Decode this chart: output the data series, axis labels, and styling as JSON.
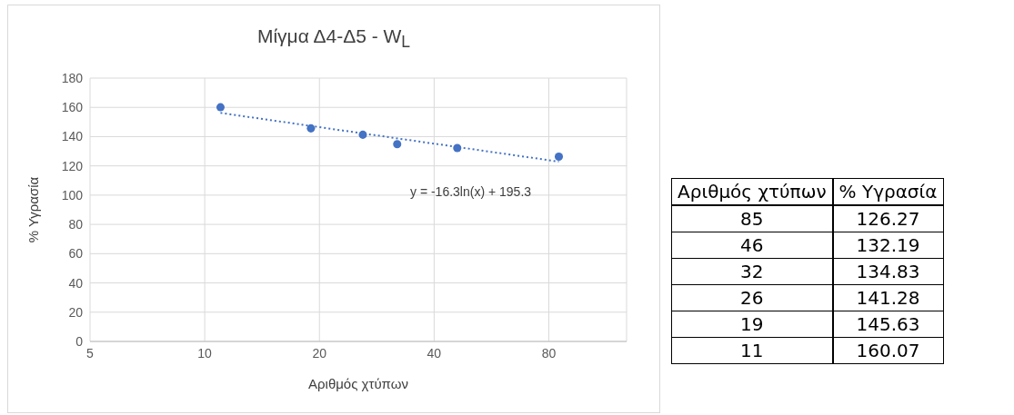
{
  "chart_data": [
    {
      "type": "scatter",
      "title": "Μίγμα Δ4-Δ5 - W$_{L}$",
      "xlabel": "Αριθμός χτύπων",
      "ylabel": "% Υγρασία",
      "x": [
        85,
        46,
        32,
        26,
        19,
        11
      ],
      "series": [
        {
          "type": "scatter",
          "color": "#4472c4",
          "values": [
            126.27,
            132.19,
            134.83,
            141.28,
            145.63,
            160.07
          ],
          "marker": "circle"
        },
        {
          "type": "line",
          "color": "#4472c4",
          "x": [
            11,
            85
          ],
          "values": [
            156.2,
            122.9
          ],
          "line_style": "dotted",
          "marker": "none"
        }
      ],
      "log": "x",
      "xlim": [
        5,
        128
      ],
      "xticks": [
        5,
        10,
        20,
        40,
        80
      ],
      "ylim": [
        0,
        180
      ],
      "yticks": [
        0,
        20,
        40,
        60,
        80,
        100,
        120,
        140,
        160,
        180
      ],
      "grid": true,
      "annotations": [
        "y = -16.3ln(x) + 195.3"
      ]
    },
    {
      "type": "other",
      "xlabel": "Αριθμός χτύπων",
      "ylabel": "% Υγρασία",
      "annotations": [
        "85",
        "126.27",
        "46",
        "132.19",
        "32",
        "134.83",
        "26",
        "141.28",
        "19",
        "145.63",
        "11",
        "160.07"
      ]
    }
  ]
}
